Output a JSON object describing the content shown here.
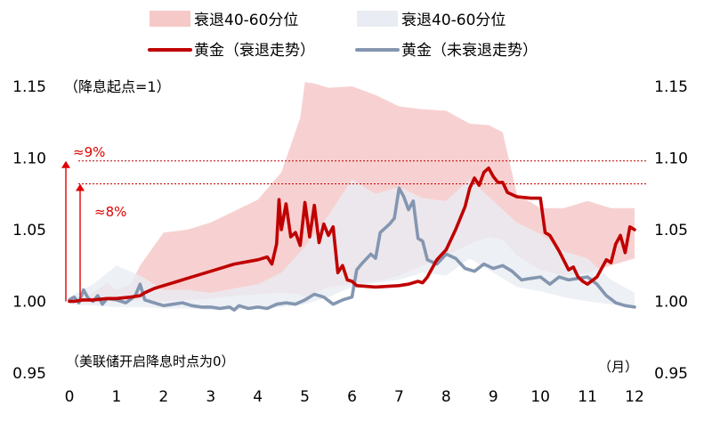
{
  "chart_data": {
    "type": "line",
    "xlim": [
      0,
      12
    ],
    "ylim": [
      0.95,
      1.15
    ],
    "x_ticks": [
      "0",
      "1",
      "2",
      "3",
      "4",
      "5",
      "6",
      "7",
      "8",
      "9",
      "10",
      "11",
      "12"
    ],
    "y_ticks_left": [
      "0.95",
      "1.00",
      "1.05",
      "1.10",
      "1.15"
    ],
    "y_ticks_right": [
      "0.95",
      "1.00",
      "1.05",
      "1.10",
      "1.15"
    ],
    "note_top_left": "（降息起点=1）",
    "note_bottom_left": "（美联储开启降息时点为0）",
    "x_unit": "（月）",
    "legend_position": "top",
    "legend": [
      {
        "label": "衰退40-60分位",
        "kind": "band",
        "color": "#f6c9c9"
      },
      {
        "label": "衰退40-60分位",
        "kind": "band",
        "color": "#e9ecf2"
      },
      {
        "label": "黄金（衰退走势）",
        "kind": "line",
        "color": "#c00000"
      },
      {
        "label": "黄金（未衰退走势）",
        "kind": "line",
        "color": "#8496b0"
      }
    ],
    "reference_lines": [
      {
        "y": 1.098,
        "color": "#c00000"
      },
      {
        "y": 1.082,
        "color": "#c00000"
      }
    ],
    "annotations": [
      {
        "text": "≈9%",
        "x": 0.1,
        "y_from": 1.0,
        "y_to": 1.098,
        "color": "#e00000"
      },
      {
        "text": "≈8%",
        "x": 0.3,
        "y_from": 1.0,
        "y_to": 1.082,
        "color": "#e00000"
      }
    ],
    "series": [
      {
        "name": "黄金（衰退走势）",
        "color": "#c00000",
        "x": [
          0,
          0.1,
          0.3,
          0.5,
          0.8,
          1.0,
          1.3,
          1.5,
          1.6,
          1.8,
          2.0,
          2.3,
          2.5,
          3.0,
          3.5,
          4.0,
          4.2,
          4.3,
          4.4,
          4.45,
          4.5,
          4.6,
          4.7,
          4.8,
          4.9,
          5.0,
          5.1,
          5.2,
          5.3,
          5.4,
          5.5,
          5.6,
          5.7,
          5.8,
          5.9,
          6.0,
          6.1,
          6.5,
          7.0,
          7.2,
          7.4,
          7.5,
          7.6,
          7.8,
          8.0,
          8.2,
          8.3,
          8.4,
          8.5,
          8.6,
          8.7,
          8.8,
          8.9,
          9.0,
          9.1,
          9.2,
          9.3,
          9.5,
          9.8,
          10.0,
          10.1,
          10.2,
          10.4,
          10.6,
          10.7,
          10.8,
          10.9,
          11.0,
          11.2,
          11.4,
          11.5,
          11.6,
          11.7,
          11.8,
          11.9,
          12.0
        ],
        "values": [
          1.0,
          1.0,
          1.001,
          1.001,
          1.002,
          1.002,
          1.003,
          1.004,
          1.006,
          1.009,
          1.011,
          1.014,
          1.016,
          1.021,
          1.026,
          1.029,
          1.031,
          1.026,
          1.04,
          1.071,
          1.05,
          1.068,
          1.045,
          1.048,
          1.039,
          1.069,
          1.045,
          1.067,
          1.041,
          1.054,
          1.046,
          1.052,
          1.02,
          1.025,
          1.015,
          1.014,
          1.011,
          1.01,
          1.011,
          1.012,
          1.014,
          1.013,
          1.017,
          1.029,
          1.036,
          1.05,
          1.058,
          1.066,
          1.079,
          1.086,
          1.081,
          1.09,
          1.093,
          1.087,
          1.083,
          1.083,
          1.076,
          1.073,
          1.072,
          1.072,
          1.048,
          1.046,
          1.035,
          1.022,
          1.024,
          1.017,
          1.014,
          1.012,
          1.017,
          1.029,
          1.027,
          1.04,
          1.046,
          1.034,
          1.052,
          1.05
        ]
      },
      {
        "name": "黄金（未衰退走势）",
        "color": "#8496b0",
        "x": [
          0,
          0.1,
          0.2,
          0.3,
          0.4,
          0.5,
          0.6,
          0.7,
          0.8,
          1.0,
          1.2,
          1.4,
          1.5,
          1.6,
          1.8,
          2.0,
          2.2,
          2.4,
          2.6,
          2.8,
          3.0,
          3.2,
          3.4,
          3.5,
          3.6,
          3.8,
          4.0,
          4.2,
          4.4,
          4.6,
          4.8,
          5.0,
          5.2,
          5.4,
          5.6,
          5.8,
          6.0,
          6.1,
          6.2,
          6.4,
          6.5,
          6.6,
          6.8,
          6.9,
          7.0,
          7.1,
          7.2,
          7.3,
          7.4,
          7.5,
          7.6,
          7.8,
          8.0,
          8.2,
          8.4,
          8.6,
          8.8,
          9.0,
          9.2,
          9.4,
          9.6,
          9.8,
          10.0,
          10.2,
          10.4,
          10.6,
          10.8,
          11.0,
          11.2,
          11.4,
          11.6,
          11.8,
          12.0
        ],
        "values": [
          1.001,
          1.003,
          0.999,
          1.008,
          1.002,
          1.0,
          1.004,
          0.998,
          1.002,
          1.001,
          0.999,
          1.004,
          1.012,
          1.001,
          0.999,
          0.997,
          0.998,
          0.999,
          0.997,
          0.996,
          0.996,
          0.995,
          0.996,
          0.994,
          0.997,
          0.995,
          0.996,
          0.995,
          0.998,
          0.999,
          0.998,
          1.001,
          1.005,
          1.003,
          0.998,
          1.001,
          1.003,
          1.022,
          1.026,
          1.033,
          1.03,
          1.048,
          1.054,
          1.058,
          1.079,
          1.073,
          1.064,
          1.07,
          1.044,
          1.042,
          1.029,
          1.026,
          1.033,
          1.03,
          1.023,
          1.021,
          1.026,
          1.023,
          1.025,
          1.021,
          1.015,
          1.016,
          1.017,
          1.012,
          1.017,
          1.015,
          1.016,
          1.017,
          1.012,
          1.004,
          0.999,
          0.997,
          0.996
        ]
      }
    ],
    "bands": [
      {
        "name": "衰退40-60分位",
        "color": "#f6c9c9",
        "x": [
          0,
          0.3,
          0.5,
          0.8,
          1.0,
          1.3,
          1.5,
          2.0,
          2.5,
          3.0,
          3.5,
          4.0,
          4.5,
          4.9,
          5.0,
          5.2,
          5.5,
          6.0,
          6.5,
          7.0,
          7.5,
          8.0,
          8.5,
          8.9,
          9.2,
          9.5,
          10.0,
          10.5,
          11.0,
          11.5,
          12.0
        ],
        "upper": [
          1.0,
          1.003,
          1.006,
          1.013,
          1.008,
          1.012,
          1.025,
          1.048,
          1.05,
          1.055,
          1.063,
          1.071,
          1.09,
          1.128,
          1.153,
          1.152,
          1.149,
          1.15,
          1.144,
          1.136,
          1.134,
          1.133,
          1.124,
          1.123,
          1.118,
          1.075,
          1.065,
          1.065,
          1.07,
          1.065,
          1.065
        ],
        "lower": [
          1.0,
          0.999,
          0.999,
          1.0,
          1.0,
          1.0,
          1.001,
          1.0,
          1.001,
          1.002,
          1.004,
          1.005,
          1.006,
          1.005,
          1.003,
          1.006,
          1.01,
          1.012,
          1.014,
          1.018,
          1.025,
          1.032,
          1.04,
          1.045,
          1.043,
          1.032,
          1.022,
          1.018,
          1.02,
          1.025,
          1.03
        ]
      },
      {
        "name": "衰退40-60分位",
        "color": "#e9ecf2",
        "x": [
          0,
          0.5,
          1.0,
          1.5,
          2.0,
          2.5,
          3.0,
          3.5,
          4.0,
          4.5,
          5.0,
          5.5,
          6.0,
          6.5,
          7.0,
          7.5,
          8.0,
          8.5,
          9.0,
          9.5,
          10.0,
          10.5,
          11.0,
          11.5,
          12.0
        ],
        "upper": [
          1.003,
          1.012,
          1.025,
          1.018,
          1.008,
          1.008,
          1.006,
          1.009,
          1.012,
          1.02,
          1.038,
          1.06,
          1.085,
          1.075,
          1.08,
          1.072,
          1.07,
          1.085,
          1.07,
          1.055,
          1.047,
          1.035,
          1.03,
          1.015,
          1.006
        ],
        "lower": [
          0.998,
          0.997,
          0.996,
          0.996,
          0.995,
          0.995,
          0.994,
          0.994,
          0.995,
          0.996,
          0.998,
          1.003,
          1.01,
          1.013,
          1.015,
          1.02,
          1.018,
          1.03,
          1.02,
          1.01,
          1.007,
          1.003,
          1.0,
          0.998,
          0.996
        ]
      }
    ]
  }
}
